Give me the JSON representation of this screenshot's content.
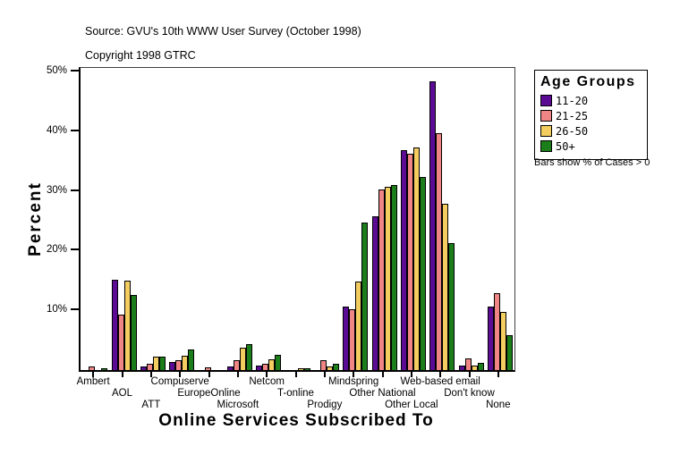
{
  "header": {
    "source": "Source: GVU's 10th WWW User Survey (October 1998)",
    "copyright": "Copyright 1998 GTRC"
  },
  "legend": {
    "title": "Age Groups",
    "note": "Bars show % of Cases > 0"
  },
  "chart_data": {
    "type": "bar",
    "title": "",
    "xlabel": "Online Services Subscribed To",
    "ylabel": "Percent",
    "ylim": [
      0,
      50
    ],
    "yticks": [
      10,
      20,
      30,
      40,
      50
    ],
    "ytick_suffix": "%",
    "grid": false,
    "legend_position": "right",
    "categories": [
      "Ambert",
      "AOL",
      "ATT",
      "Compuserve",
      "EuropeOnline",
      "Microsoft",
      "Netcom",
      "T-online",
      "Prodigy",
      "Mindspring",
      "Other National",
      "Other Local",
      "Web-based email",
      "Don't know",
      "None"
    ],
    "series": [
      {
        "name": "11-20",
        "color": "#5C0C94",
        "values": [
          0,
          15.1,
          0.6,
          1.4,
          0,
          0.6,
          0.7,
          0,
          0,
          10.7,
          25.8,
          36.8,
          48.4,
          0.7,
          10.7
        ]
      },
      {
        "name": "21-25",
        "color": "#EF8585",
        "values": [
          0.6,
          9.3,
          1.1,
          1.7,
          0.5,
          1.7,
          1.1,
          0,
          1.6,
          10.2,
          30.3,
          36.3,
          39.7,
          2.0,
          12.8
        ]
      },
      {
        "name": "26-50",
        "color": "#F3CD60",
        "values": [
          0,
          15.0,
          2.2,
          2.4,
          0,
          3.7,
          1.8,
          0.3,
          0.6,
          14.8,
          30.7,
          37.3,
          27.9,
          0.7,
          9.7
        ]
      },
      {
        "name": "50+",
        "color": "#1B7E1B",
        "values": [
          0.3,
          12.5,
          2.2,
          3.5,
          0,
          4.3,
          2.5,
          0.3,
          1.1,
          24.7,
          31.0,
          32.3,
          21.3,
          1.2,
          5.9
        ]
      }
    ]
  }
}
